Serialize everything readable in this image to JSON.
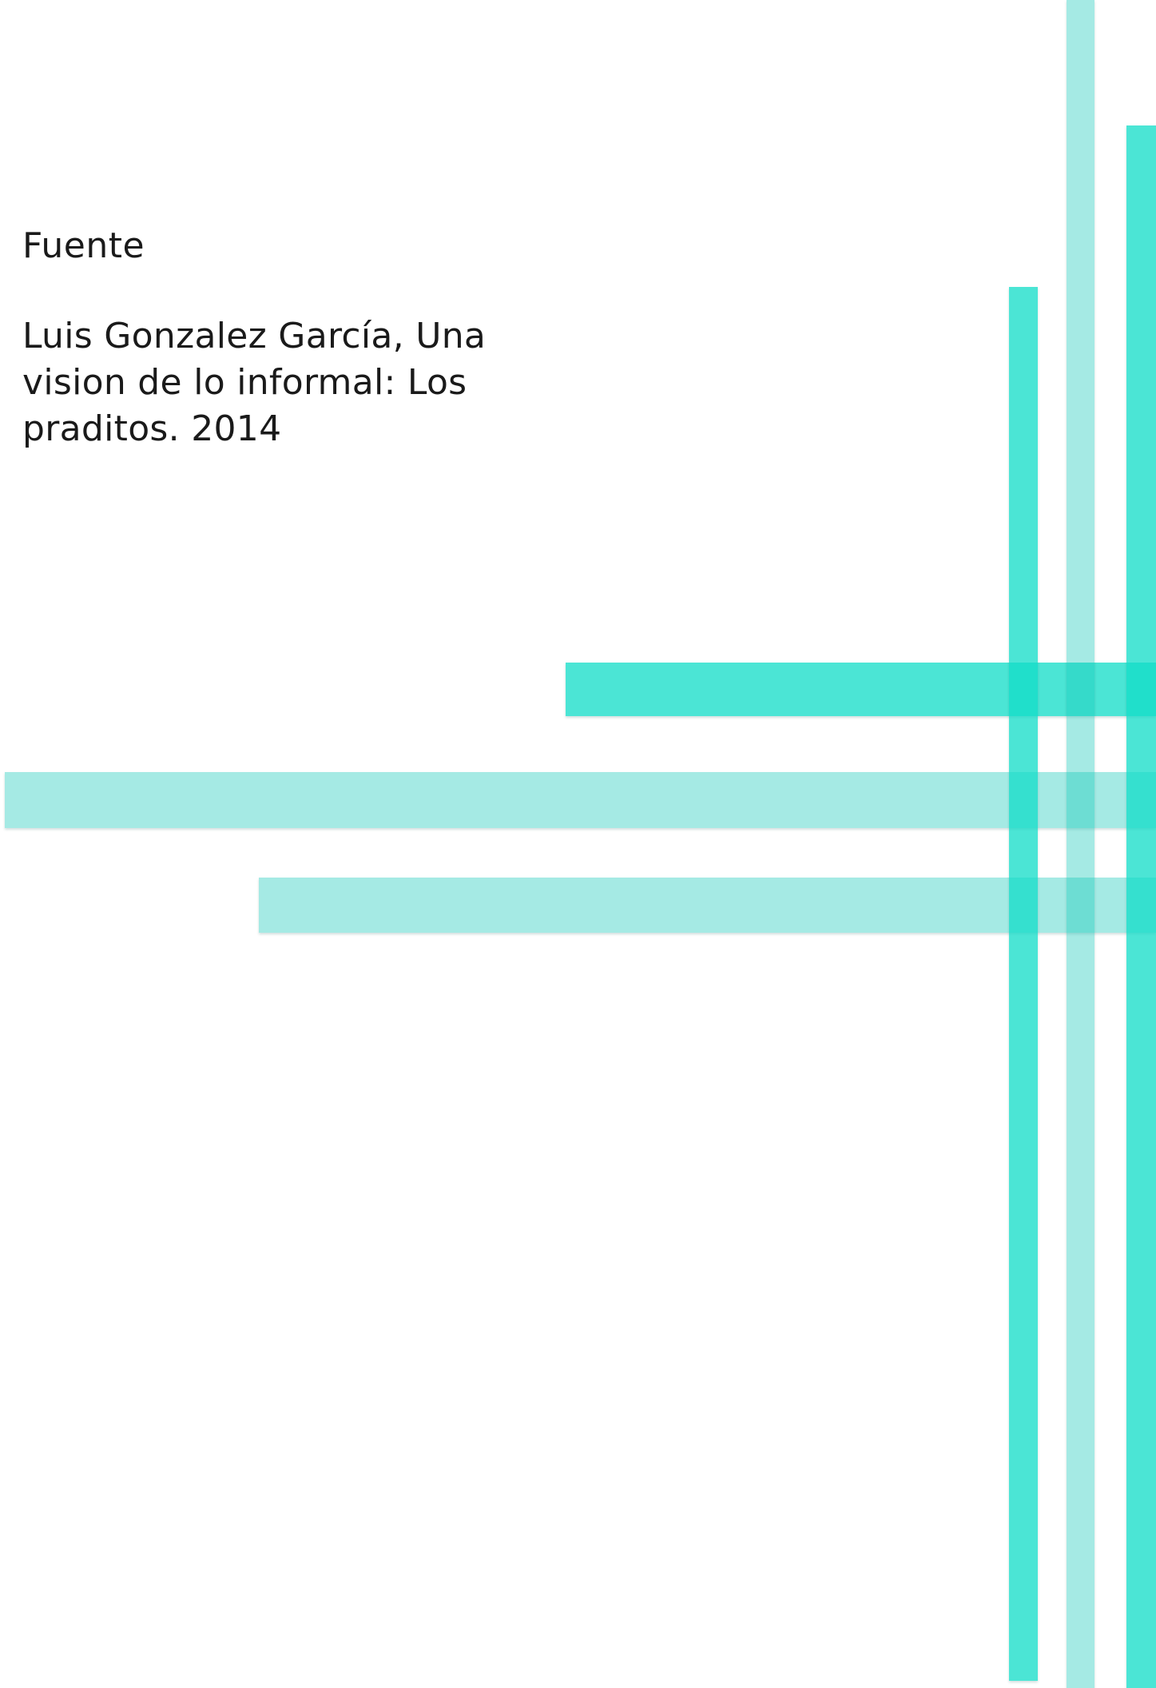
{
  "document": {
    "heading": "Fuente",
    "citation_lines": [
      "Luis Gonzalez García, Una",
      "vision de lo informal: Los",
      "praditos. 2014"
    ]
  },
  "decoration": {
    "accent_color": "#12DDC8",
    "light_accent_color": "#A6E9E3"
  }
}
